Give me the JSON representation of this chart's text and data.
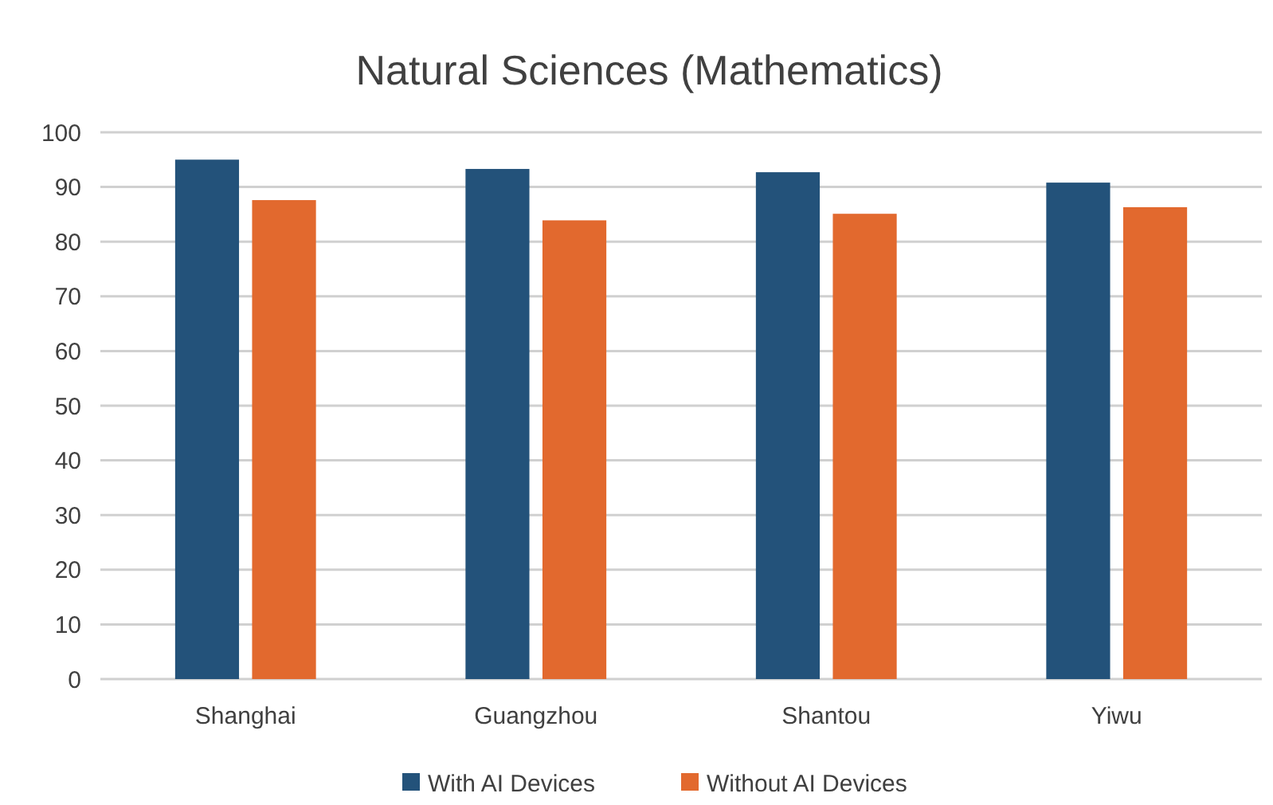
{
  "chart_data": {
    "type": "bar",
    "title": "Natural Sciences (Mathematics)",
    "categories": [
      "Shanghai",
      "Guangzhou",
      "Shantou",
      "Yiwu"
    ],
    "series": [
      {
        "name": "With AI Devices",
        "color": "#23527a",
        "values": [
          95,
          93.3,
          92.7,
          90.8
        ]
      },
      {
        "name": "Without AI Devices",
        "color": "#e2692e",
        "values": [
          87.6,
          83.9,
          85.1,
          86.3
        ]
      }
    ],
    "ylim": [
      0,
      100
    ],
    "yticks": [
      0,
      10,
      20,
      30,
      40,
      50,
      60,
      70,
      80,
      90,
      100
    ],
    "grid": "y",
    "legend": "bottom"
  }
}
